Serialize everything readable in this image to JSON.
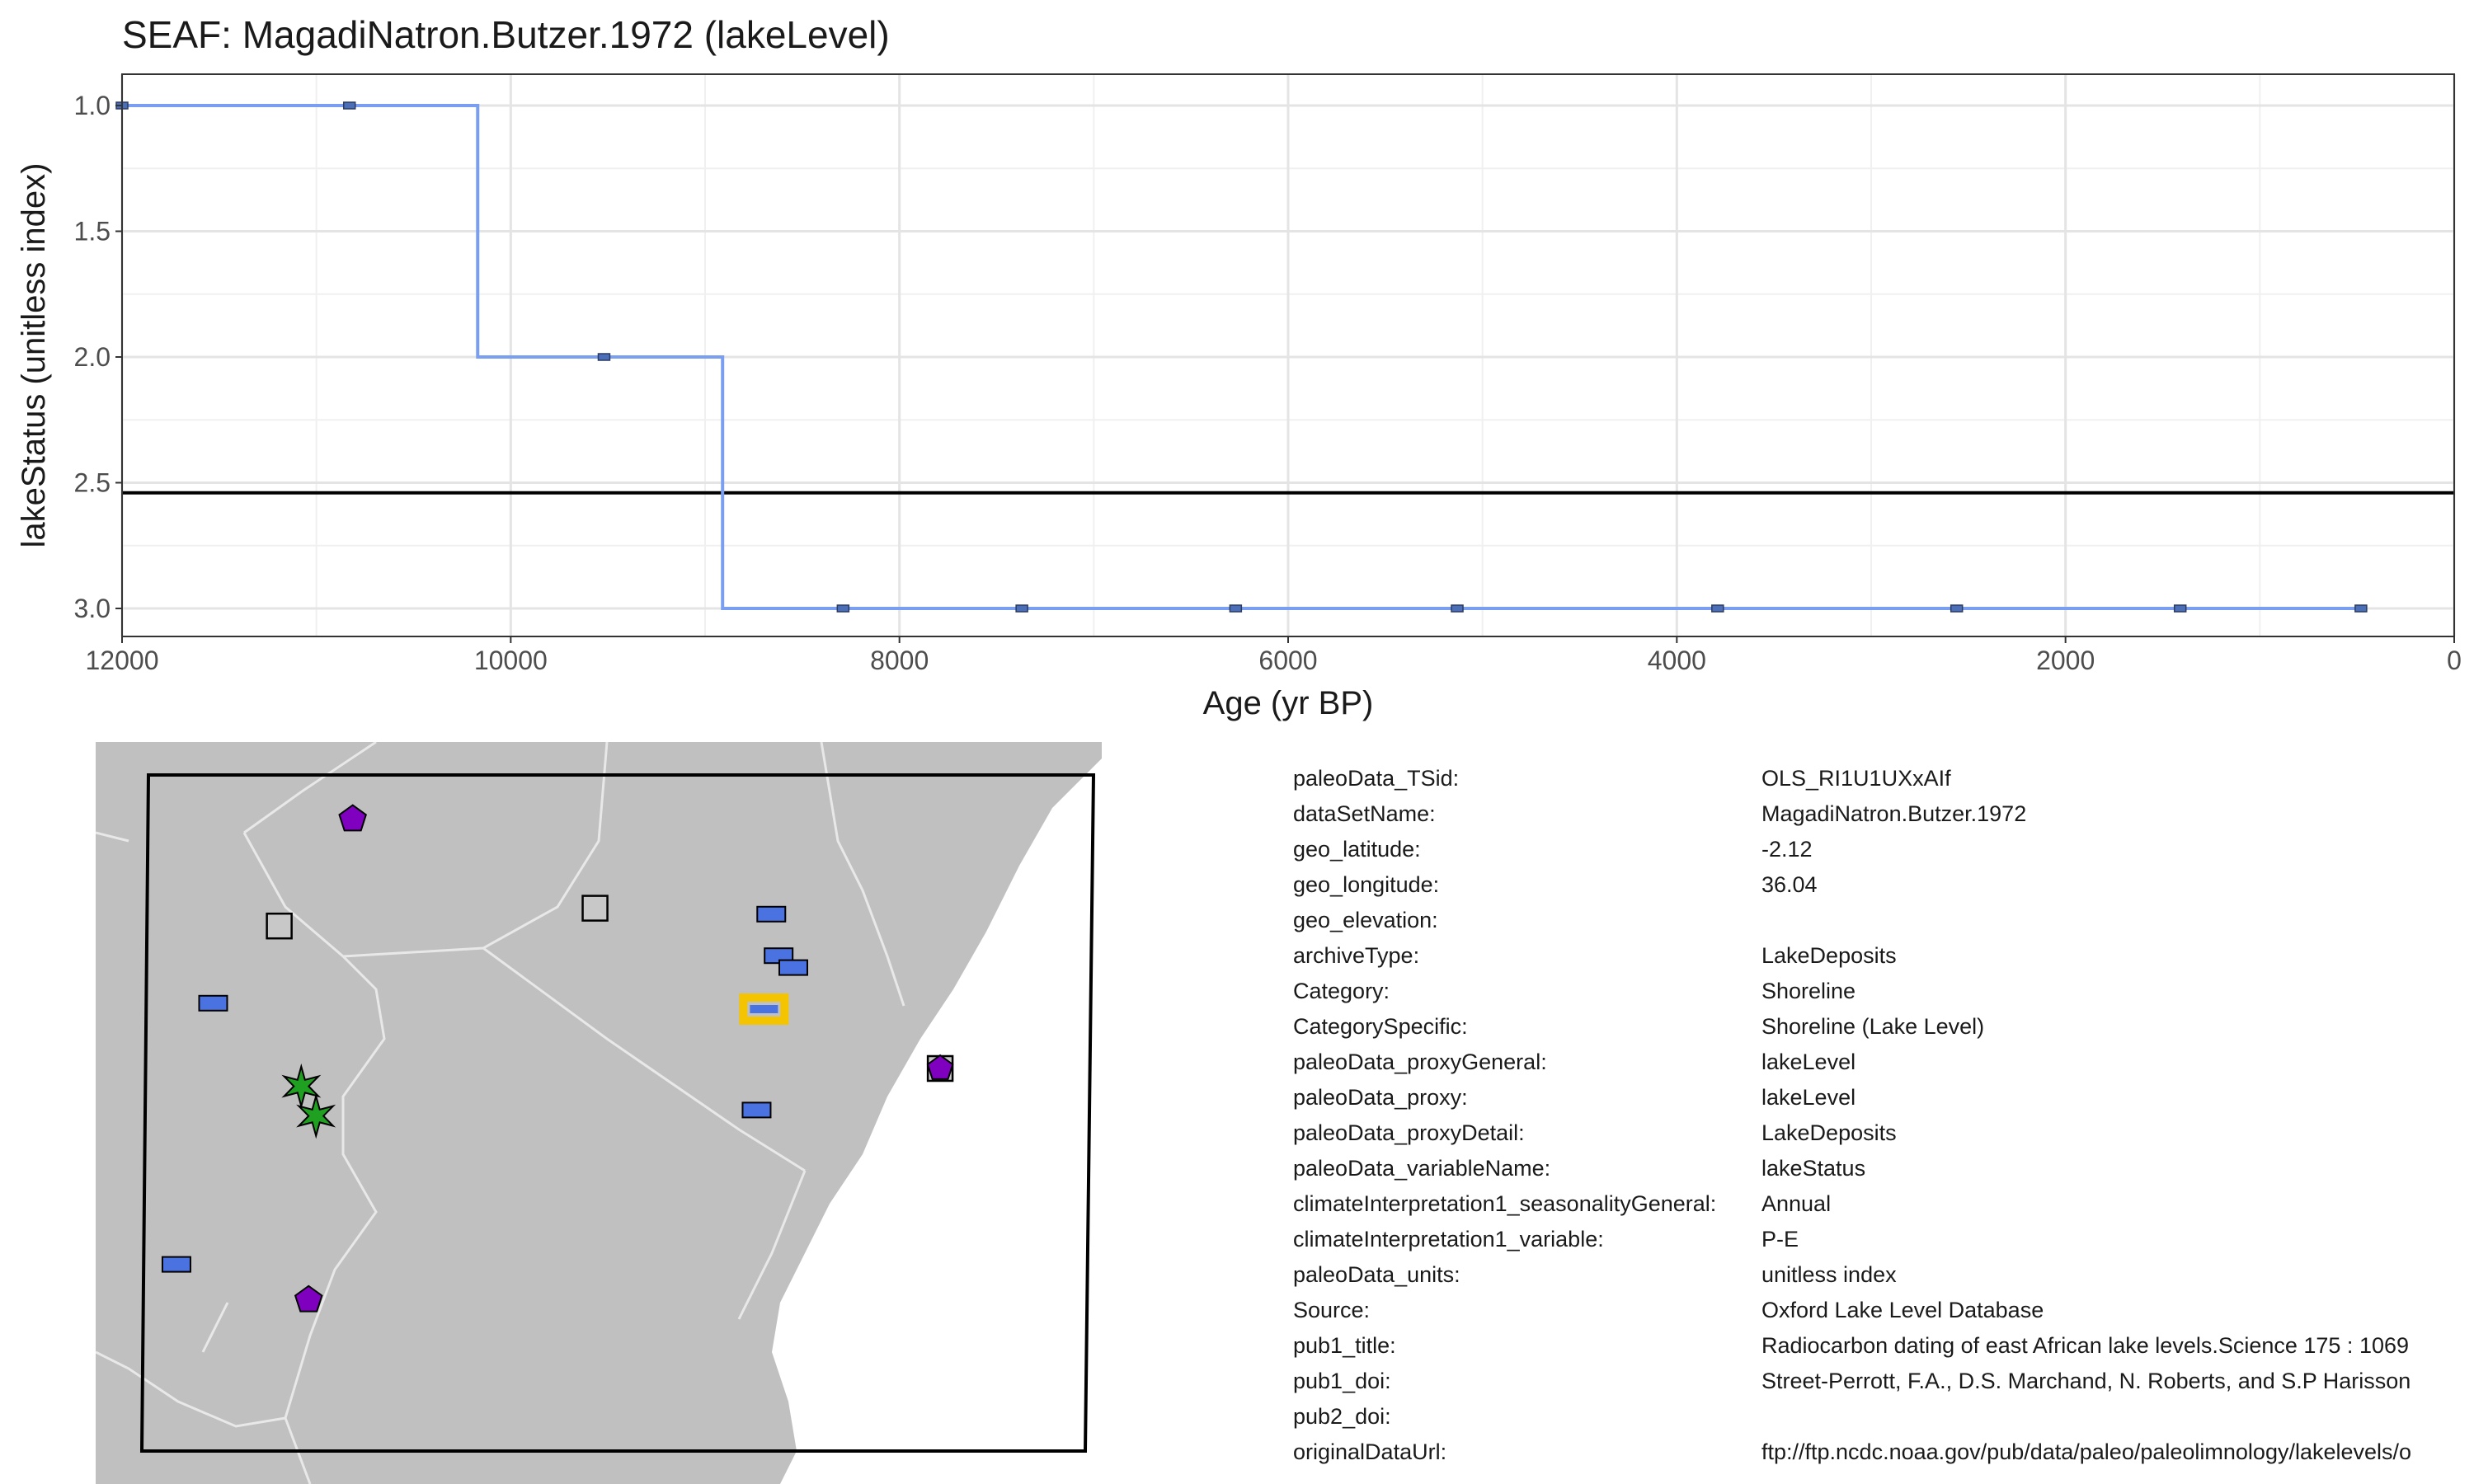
{
  "chart_data": {
    "type": "line",
    "title": "SEAF: MagadiNatron.Butzer.1972 (lakeLevel)",
    "xlabel": "Age (yr BP)",
    "ylabel": "lakeStatus (unitless index)",
    "x_reversed": true,
    "y_reversed": true,
    "xlim": [
      12000,
      0
    ],
    "ylim": [
      3.0,
      1.0
    ],
    "x_ticks": [
      12000,
      10000,
      8000,
      6000,
      4000,
      2000,
      0
    ],
    "x_tick_labels": [
      "12000",
      "10000",
      "8000",
      "6000",
      "4000",
      "2000",
      "0"
    ],
    "y_ticks": [
      1.0,
      1.5,
      2.0,
      2.5,
      3.0
    ],
    "y_tick_labels": [
      "1.0",
      "1.5",
      "2.0",
      "2.5",
      "3.0"
    ],
    "grid": true,
    "step": true,
    "series_color": "#7b9ff0",
    "marker_color": "#4a6fb8",
    "x": [
      12000,
      10830,
      9520,
      8290,
      7370,
      6270,
      5130,
      3790,
      2560,
      1410,
      480
    ],
    "y": [
      1,
      1,
      2,
      3,
      3,
      3,
      3,
      3,
      3,
      3,
      3
    ],
    "step_x": [
      12000,
      10170,
      8910,
      480
    ],
    "step_y": [
      1,
      2,
      3,
      3
    ],
    "reference_line": {
      "y": 2.54,
      "color": "#000000"
    }
  },
  "map": {
    "land_color": "#c0c0c0",
    "border_color": "#e8e8e8",
    "sites": [
      {
        "shape": "pentagon",
        "color": "#8000c0",
        "lon": 34.3,
        "lat": 4.7
      },
      {
        "shape": "square",
        "color": "#c8c8c8",
        "lon": 37.6,
        "lat": 3.2
      },
      {
        "shape": "square",
        "color": "#c8c8c8",
        "lon": 33.3,
        "lat": 2.9
      },
      {
        "shape": "rect",
        "color": "#4a72e0",
        "lon": 40.0,
        "lat": 3.1
      },
      {
        "shape": "rect",
        "color": "#4a72e0",
        "lon": 40.1,
        "lat": 2.4
      },
      {
        "shape": "rect",
        "color": "#4a72e0",
        "lon": 40.3,
        "lat": 2.2
      },
      {
        "shape": "rect",
        "color": "#4a72e0",
        "lon": 32.4,
        "lat": 1.6
      },
      {
        "shape": "rect-highlight",
        "color": "#4a72e0",
        "highlight": "#f5c400",
        "lon": 39.9,
        "lat": 1.5
      },
      {
        "shape": "square-pentagon",
        "color": "#8000c0",
        "lon": 42.3,
        "lat": 0.5
      },
      {
        "shape": "rect",
        "color": "#4a72e0",
        "lon": 39.8,
        "lat": -0.2
      },
      {
        "shape": "star",
        "color": "#20a020",
        "lon": 33.6,
        "lat": 0.2
      },
      {
        "shape": "star",
        "color": "#20a020",
        "lon": 33.8,
        "lat": -0.3
      },
      {
        "shape": "rect",
        "color": "#4a72e0",
        "lon": 31.9,
        "lat": -2.8
      },
      {
        "shape": "pentagon",
        "color": "#8000c0",
        "lon": 33.7,
        "lat": -3.4
      }
    ]
  },
  "metadata": [
    {
      "key": "paleoData_TSid:",
      "value": "OLS_RI1U1UXxAIf"
    },
    {
      "key": "dataSetName:",
      "value": "MagadiNatron.Butzer.1972"
    },
    {
      "key": "geo_latitude:",
      "value": "-2.12"
    },
    {
      "key": "geo_longitude:",
      "value": "36.04"
    },
    {
      "key": "geo_elevation:",
      "value": ""
    },
    {
      "key": "archiveType:",
      "value": "LakeDeposits"
    },
    {
      "key": "Category:",
      "value": "Shoreline"
    },
    {
      "key": "CategorySpecific:",
      "value": "Shoreline (Lake Level)"
    },
    {
      "key": "paleoData_proxyGeneral:",
      "value": "lakeLevel"
    },
    {
      "key": "paleoData_proxy:",
      "value": "lakeLevel"
    },
    {
      "key": "paleoData_proxyDetail:",
      "value": "LakeDeposits"
    },
    {
      "key": "paleoData_variableName:",
      "value": "lakeStatus"
    },
    {
      "key": "climateInterpretation1_seasonalityGeneral:",
      "value": "Annual"
    },
    {
      "key": "climateInterpretation1_variable:",
      "value": "P-E"
    },
    {
      "key": "paleoData_units:",
      "value": "unitless index"
    },
    {
      "key": "Source:",
      "value": "Oxford Lake Level Database"
    },
    {
      "key": "pub1_title:",
      "value": "Radiocarbon dating of east African lake levels.Science 175 : 1069"
    },
    {
      "key": "pub1_doi:",
      "value": "Street-Perrott, F.A., D.S. Marchand, N. Roberts, and S.P Harisson"
    },
    {
      "key": "pub2_doi:",
      "value": ""
    },
    {
      "key": "originalDataUrl:",
      "value": "ftp://ftp.ncdc.noaa.gov/pub/data/paleo/paleolimnology/lakelevels/o"
    }
  ]
}
